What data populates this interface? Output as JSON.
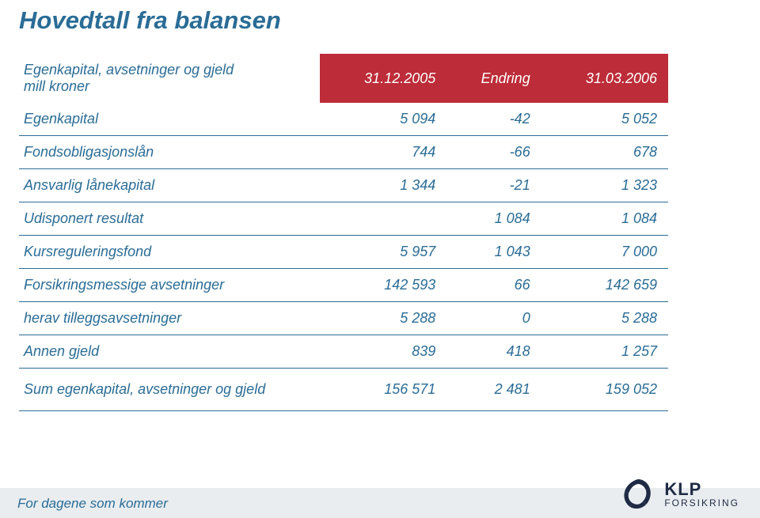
{
  "title": "Hovedtall fra balansen",
  "header": {
    "row_head_line1": "Egenkapital, avsetninger og gjeld",
    "row_head_line2": "mill kroner",
    "col1": "31.12.2005",
    "col2": "Endring",
    "col3": "31.03.2006"
  },
  "rows": [
    {
      "label": "Egenkapital",
      "c1": "5 094",
      "c2": "-42",
      "c3": "5 052",
      "underlined": true
    },
    {
      "label": "Fondsobligasjonslån",
      "c1": "744",
      "c2": "-66",
      "c3": "678",
      "underlined": true
    },
    {
      "label": "Ansvarlig lånekapital",
      "c1": "1 344",
      "c2": "-21",
      "c3": "1 323",
      "underlined": true
    },
    {
      "label": "Udisponert resultat",
      "c1": "",
      "c2": "1 084",
      "c3": "1 084",
      "underlined": true
    },
    {
      "label": "Kursreguleringsfond",
      "c1": "5 957",
      "c2": "1 043",
      "c3": "7 000",
      "underlined": true
    },
    {
      "label": "Forsikringsmessige avsetninger",
      "c1": "142 593",
      "c2": "66",
      "c3": "142 659",
      "underlined": true
    },
    {
      "label": "herav tilleggsavsetninger",
      "c1": "5 288",
      "c2": "0",
      "c3": "5 288",
      "underlined": true,
      "italic_row": true
    },
    {
      "label": "Annen gjeld",
      "c1": "839",
      "c2": "418",
      "c3": "1 257",
      "underlined": false
    }
  ],
  "sum_row": {
    "label": "Sum egenkapital, avsetninger og gjeld",
    "c1": "156 571",
    "c2": "2 481",
    "c3": "159 052"
  },
  "footer": {
    "slogan": "For dagene som kommer",
    "logo_main": "KLP",
    "logo_sub": "FORSIKRING"
  },
  "colors": {
    "title": "#2a6c96",
    "header_bg": "#bd2c39",
    "header_fg": "#ffffff",
    "cell_fg": "#2a6c96",
    "border": "#2a6c96",
    "footer_bg": "#e9edf0",
    "logo_dark": "#1f2a44"
  }
}
